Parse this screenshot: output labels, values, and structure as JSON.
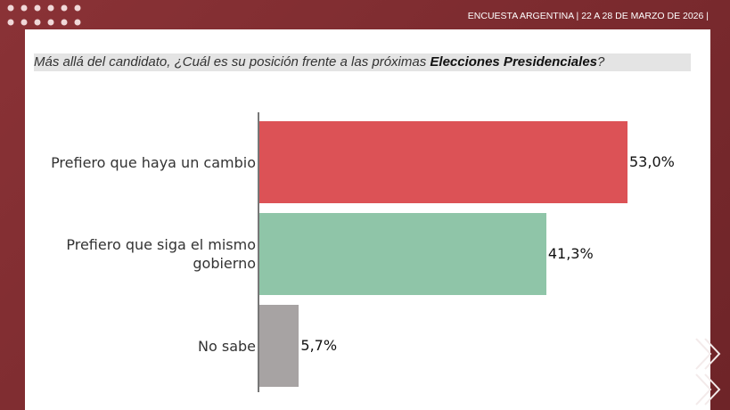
{
  "header": {
    "text": "ENCUESTA ARGENTINA | 22 A 28 DE MARZO DE 2026 |"
  },
  "chart_data": {
    "type": "bar",
    "orientation": "horizontal",
    "title_parts": [
      "Más allá del candidato, ¿Cuál es su posición frente a las próximas ",
      "Elecciones Presidenciales",
      "?"
    ],
    "categories": [
      "Prefiero que haya un cambio",
      "Prefiero que siga el mismo gobierno",
      "No sabe"
    ],
    "values": [
      53.0,
      41.3,
      5.7
    ],
    "value_labels": [
      "53,0%",
      "41,3%",
      "5,7%"
    ],
    "colors": [
      "#dc5256",
      "#8fc5a8",
      "#a7a3a3"
    ]
  }
}
